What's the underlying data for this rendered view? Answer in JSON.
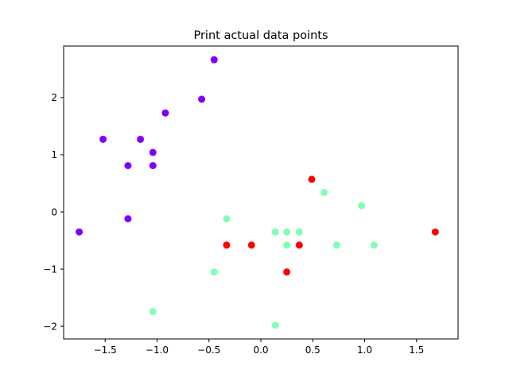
{
  "chart_data": {
    "type": "scatter",
    "title": "Print actual data points",
    "xlabel": "",
    "ylabel": "",
    "xlim": [
      -1.9,
      1.9
    ],
    "ylim": [
      -2.22,
      2.9
    ],
    "xticks": [
      -1.5,
      -1.0,
      -0.5,
      0.0,
      0.5,
      1.0,
      1.5
    ],
    "xtick_labels": [
      "−1.5",
      "−1.0",
      "−0.5",
      "0.0",
      "0.5",
      "1.0",
      "1.5"
    ],
    "yticks": [
      -2,
      -1,
      0,
      1,
      2
    ],
    "ytick_labels": [
      "−2",
      "−1",
      "0",
      "1",
      "2"
    ],
    "grid": false,
    "legend": "none",
    "series": [
      {
        "color": "#8000ff",
        "points": [
          [
            -1.75,
            -0.35
          ],
          [
            -1.52,
            1.27
          ],
          [
            -1.28,
            0.81
          ],
          [
            -1.28,
            -0.12
          ],
          [
            -1.16,
            1.27
          ],
          [
            -1.04,
            1.04
          ],
          [
            -1.04,
            0.81
          ],
          [
            -0.92,
            1.73
          ],
          [
            -0.57,
            1.97
          ],
          [
            -0.45,
            2.66
          ]
        ]
      },
      {
        "color": "#80ffb4",
        "points": [
          [
            -1.04,
            -1.74
          ],
          [
            -0.45,
            -1.05
          ],
          [
            -0.33,
            -0.12
          ],
          [
            0.14,
            -0.35
          ],
          [
            0.14,
            -1.98
          ],
          [
            0.25,
            -0.35
          ],
          [
            0.25,
            -0.58
          ],
          [
            0.37,
            -0.35
          ],
          [
            0.61,
            0.34
          ],
          [
            0.73,
            -0.58
          ],
          [
            0.97,
            0.11
          ],
          [
            1.09,
            -0.58
          ]
        ]
      },
      {
        "color": "#ff0000",
        "points": [
          [
            -0.33,
            -0.58
          ],
          [
            -0.09,
            -0.58
          ],
          [
            0.25,
            -1.05
          ],
          [
            0.37,
            -0.58
          ],
          [
            0.49,
            0.57
          ],
          [
            1.68,
            -0.35
          ]
        ]
      }
    ]
  }
}
